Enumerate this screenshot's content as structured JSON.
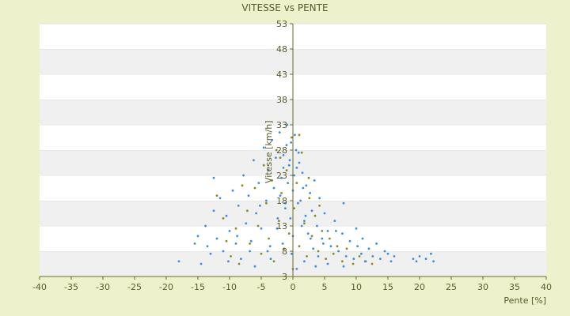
{
  "chart_data": {
    "type": "scatter",
    "title": "VITESSE vs PENTE",
    "xlabel": "Pente [%]",
    "ylabel": "Vitesse [km/h]",
    "xlim": [
      -40,
      40
    ],
    "ylim": [
      3,
      53
    ],
    "x_ticks": [
      -40,
      -35,
      -30,
      -25,
      -20,
      -15,
      -10,
      -5,
      0,
      5,
      10,
      15,
      20,
      25,
      30,
      35,
      40
    ],
    "y_ticks": [
      3,
      8,
      13,
      18,
      23,
      28,
      33,
      38,
      43,
      48,
      53
    ],
    "grid": "horizontal alternating bands",
    "legend": "none",
    "colors": {
      "series_main": "#3a8ee0",
      "series_secondary": "#8a8a20",
      "band_dark": "#f0f0f0",
      "band_light": "#ffffff",
      "axis": "#6a6a2a"
    },
    "series": [
      {
        "color_role": "secondary",
        "points": [
          [
            -11.0,
            14.5
          ],
          [
            -10.5,
            10.0
          ],
          [
            -9.8,
            7.0
          ],
          [
            -9.0,
            12.5
          ],
          [
            -8.5,
            5.5
          ],
          [
            -7.2,
            16.0
          ],
          [
            -6.8,
            9.5
          ],
          [
            -6.0,
            20.5
          ],
          [
            -5.5,
            13.0
          ],
          [
            -5.0,
            7.5
          ],
          [
            -4.6,
            25.0
          ],
          [
            -4.2,
            17.5
          ],
          [
            -3.8,
            10.5
          ],
          [
            -3.3,
            22.0
          ],
          [
            -3.0,
            6.0
          ],
          [
            -2.6,
            28.0
          ],
          [
            -2.2,
            14.0
          ],
          [
            -1.8,
            19.5
          ],
          [
            -1.4,
            8.5
          ],
          [
            -1.0,
            24.0
          ],
          [
            -0.6,
            11.5
          ],
          [
            -0.2,
            30.5
          ],
          [
            0.2,
            16.5
          ],
          [
            0.6,
            21.5
          ],
          [
            1.0,
            9.0
          ],
          [
            1.4,
            27.5
          ],
          [
            1.8,
            13.5
          ],
          [
            2.2,
            7.0
          ],
          [
            2.6,
            18.5
          ],
          [
            3.0,
            11.0
          ],
          [
            3.5,
            15.0
          ],
          [
            4.0,
            8.0
          ],
          [
            4.6,
            12.0
          ],
          [
            5.2,
            6.5
          ],
          [
            5.8,
            10.5
          ],
          [
            6.4,
            7.5
          ],
          [
            7.0,
            9.0
          ],
          [
            7.8,
            6.0
          ],
          [
            8.5,
            8.5
          ],
          [
            9.5,
            5.5
          ],
          [
            10.5,
            7.0
          ],
          [
            11.5,
            6.0
          ],
          [
            12.5,
            5.5
          ],
          [
            -8.0,
            21.0
          ],
          [
            -2.0,
            26.5
          ],
          [
            1.0,
            31.0
          ],
          [
            2.5,
            22.5
          ],
          [
            4.2,
            17.0
          ],
          [
            -12.0,
            19.0
          ],
          [
            0.0,
            4.5
          ]
        ]
      },
      {
        "color_role": "main",
        "points": [
          [
            -18.0,
            6.0
          ],
          [
            -15.5,
            9.5
          ],
          [
            -15.0,
            11.0
          ],
          [
            -14.5,
            5.5
          ],
          [
            -13.8,
            13.0
          ],
          [
            -13.0,
            7.5
          ],
          [
            -12.5,
            16.0
          ],
          [
            -12.0,
            10.5
          ],
          [
            -11.5,
            18.5
          ],
          [
            -11.0,
            8.0
          ],
          [
            -10.5,
            15.0
          ],
          [
            -10.0,
            12.0
          ],
          [
            -9.5,
            20.0
          ],
          [
            -9.0,
            9.5
          ],
          [
            -8.6,
            17.0
          ],
          [
            -8.2,
            6.5
          ],
          [
            -7.8,
            23.0
          ],
          [
            -7.4,
            13.5
          ],
          [
            -7.0,
            19.0
          ],
          [
            -6.6,
            10.0
          ],
          [
            -6.2,
            26.0
          ],
          [
            -5.8,
            15.5
          ],
          [
            -5.4,
            21.5
          ],
          [
            -5.0,
            12.5
          ],
          [
            -4.6,
            28.5
          ],
          [
            -4.2,
            18.0
          ],
          [
            -3.9,
            24.0
          ],
          [
            -3.6,
            9.0
          ],
          [
            -3.3,
            30.0
          ],
          [
            -3.0,
            20.5
          ],
          [
            -2.7,
            26.5
          ],
          [
            -2.4,
            14.5
          ],
          [
            -2.1,
            31.5
          ],
          [
            -1.8,
            22.5
          ],
          [
            -1.5,
            27.0
          ],
          [
            -1.2,
            17.5
          ],
          [
            -0.9,
            33.0
          ],
          [
            -0.6,
            25.0
          ],
          [
            -0.3,
            29.5
          ],
          [
            0.0,
            20.0
          ],
          [
            0.3,
            31.0
          ],
          [
            0.6,
            24.5
          ],
          [
            0.9,
            27.5
          ],
          [
            1.2,
            18.0
          ],
          [
            1.5,
            23.5
          ],
          [
            1.8,
            14.0
          ],
          [
            2.1,
            21.0
          ],
          [
            2.4,
            11.5
          ],
          [
            2.7,
            19.5
          ],
          [
            3.0,
            16.0
          ],
          [
            3.4,
            22.0
          ],
          [
            3.8,
            13.0
          ],
          [
            4.2,
            18.5
          ],
          [
            4.6,
            10.5
          ],
          [
            5.0,
            15.5
          ],
          [
            5.5,
            12.0
          ],
          [
            6.0,
            9.0
          ],
          [
            6.6,
            14.0
          ],
          [
            7.2,
            8.0
          ],
          [
            7.8,
            11.5
          ],
          [
            8.4,
            7.0
          ],
          [
            9.0,
            10.0
          ],
          [
            9.6,
            6.5
          ],
          [
            10.2,
            9.0
          ],
          [
            10.8,
            7.5
          ],
          [
            11.4,
            6.0
          ],
          [
            12.0,
            8.5
          ],
          [
            12.6,
            7.0
          ],
          [
            13.2,
            9.5
          ],
          [
            13.8,
            6.5
          ],
          [
            14.5,
            8.0
          ],
          [
            15.0,
            7.5
          ],
          [
            15.5,
            6.0
          ],
          [
            16.0,
            7.0
          ],
          [
            19.0,
            6.5
          ],
          [
            19.5,
            6.0
          ],
          [
            20.0,
            7.0
          ],
          [
            21.0,
            6.5
          ],
          [
            21.8,
            7.5
          ],
          [
            22.2,
            6.0
          ],
          [
            -1.0,
            29.0
          ],
          [
            0.5,
            28.0
          ],
          [
            -0.5,
            26.0
          ],
          [
            1.0,
            25.5
          ],
          [
            -1.5,
            24.5
          ],
          [
            0.2,
            23.0
          ],
          [
            -0.8,
            21.5
          ],
          [
            1.6,
            20.5
          ],
          [
            -2.0,
            19.0
          ],
          [
            0.8,
            17.5
          ],
          [
            -1.2,
            16.5
          ],
          [
            2.0,
            15.0
          ],
          [
            -0.4,
            14.5
          ],
          [
            1.4,
            13.0
          ],
          [
            -2.5,
            12.5
          ],
          [
            0.0,
            11.0
          ],
          [
            2.8,
            10.5
          ],
          [
            -1.6,
            9.5
          ],
          [
            3.2,
            8.5
          ],
          [
            -0.2,
            7.5
          ],
          [
            4.0,
            7.0
          ],
          [
            -3.5,
            6.5
          ],
          [
            1.8,
            6.0
          ],
          [
            5.5,
            5.5
          ],
          [
            -6.0,
            5.0
          ],
          [
            0.6,
            4.5
          ],
          [
            8.0,
            5.0
          ],
          [
            11.0,
            10.5
          ],
          [
            8.0,
            17.5
          ],
          [
            -12.5,
            22.5
          ],
          [
            -4.0,
            8.0
          ],
          [
            6.8,
            12.0
          ],
          [
            -8.8,
            11.0
          ],
          [
            4.8,
            9.5
          ],
          [
            -6.8,
            8.0
          ],
          [
            10.0,
            12.5
          ],
          [
            -13.5,
            9.0
          ],
          [
            -10.2,
            6.0
          ],
          [
            3.6,
            5.0
          ],
          [
            -5.2,
            17.0
          ]
        ]
      }
    ]
  }
}
